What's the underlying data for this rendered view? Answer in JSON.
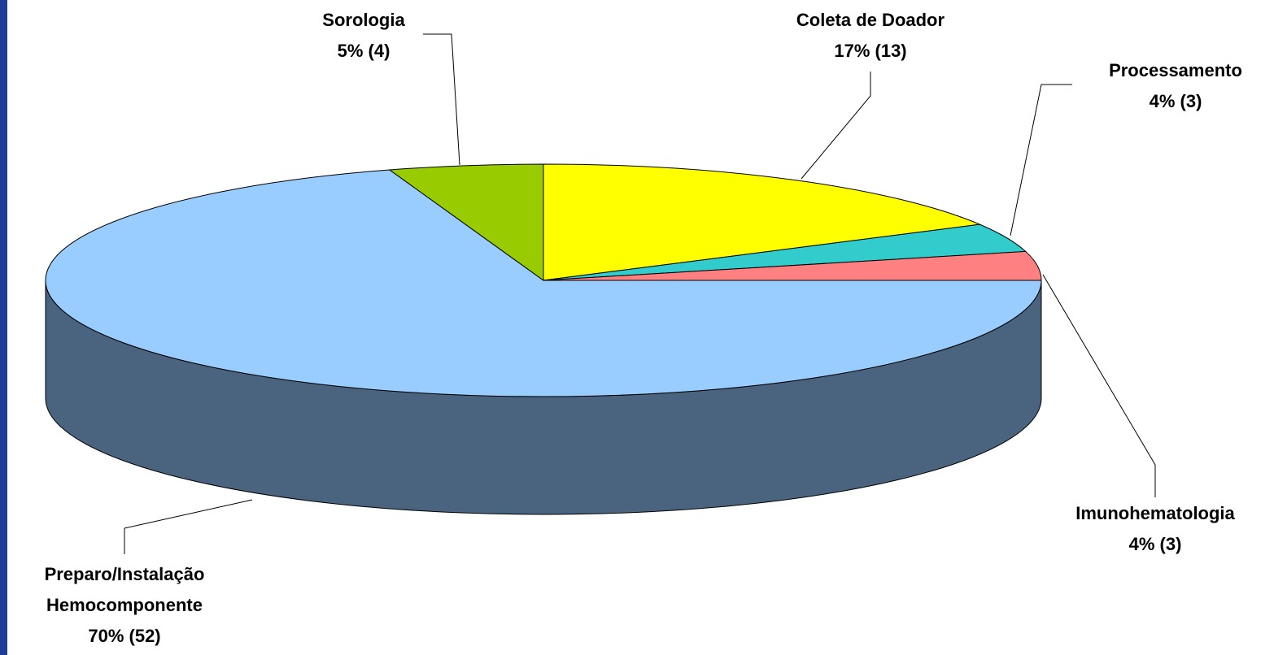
{
  "chart_data": {
    "type": "pie3d",
    "categories": [
      "Coleta de Doador",
      "Processamento",
      "Imunohematologia",
      "Preparo/Instalação Hemocomponente",
      "Sorologia"
    ],
    "values": [
      17,
      4,
      4,
      70,
      5
    ],
    "counts": [
      13,
      3,
      3,
      52,
      4
    ],
    "value_labels": [
      "17% (13)",
      "4% (3)",
      "4% (3)",
      "70% (52)",
      "5% (4)"
    ],
    "colors": [
      "#ffff00",
      "#33cccc",
      "#ff8080",
      "#99ccff",
      "#99cc00"
    ]
  }
}
